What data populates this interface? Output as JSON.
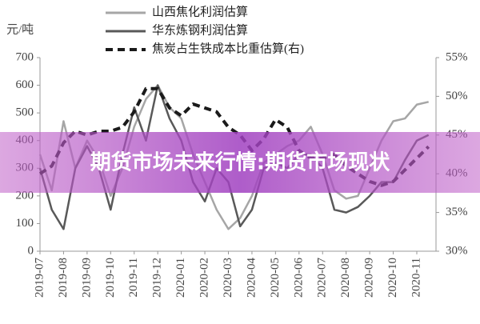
{
  "chart_data": {
    "type": "line",
    "y_label": "元/吨",
    "categories": [
      "2019-07",
      null,
      "2019-08",
      null,
      "2019-09",
      null,
      "2019-10",
      null,
      "2019-11",
      null,
      "2019-12",
      null,
      "2020-01",
      null,
      "2020-02",
      null,
      "2020-03",
      null,
      "2020-04",
      null,
      "2020-05",
      null,
      "2020-06",
      null,
      "2020-07",
      null,
      "2020-08",
      null,
      "2020-09",
      null,
      "2020-10",
      null,
      "2020-11",
      null
    ],
    "series": [
      {
        "name": "山西焦化利润估算",
        "color": "#a6a6a6",
        "style": "solid",
        "axis": "y",
        "values": [
          350,
          220,
          470,
          300,
          400,
          330,
          200,
          300,
          450,
          550,
          600,
          520,
          480,
          350,
          250,
          150,
          80,
          120,
          200,
          320,
          350,
          380,
          400,
          450,
          350,
          220,
          190,
          200,
          300,
          400,
          470,
          480,
          530,
          540
        ]
      },
      {
        "name": "华东炼钢利润估算",
        "color": "#595959",
        "style": "solid",
        "axis": "y",
        "values": [
          300,
          150,
          80,
          300,
          380,
          300,
          150,
          350,
          520,
          400,
          600,
          480,
          400,
          250,
          180,
          300,
          250,
          90,
          150,
          300,
          320,
          300,
          350,
          350,
          300,
          150,
          140,
          160,
          200,
          250,
          250,
          330,
          400,
          420
        ]
      },
      {
        "name": "焦炭占生铁成本比重估算(右)",
        "color": "#1a1a1a",
        "style": "dashed",
        "axis": "y2",
        "values": [
          40,
          41,
          44,
          45.5,
          45,
          45.5,
          45.5,
          46,
          48,
          51,
          51,
          48.5,
          47.5,
          49,
          48.5,
          48,
          46,
          45,
          43,
          44.5,
          47,
          46,
          43,
          42,
          42,
          42.5,
          41,
          40,
          39,
          38.5,
          39,
          40.5,
          42,
          43.5
        ]
      }
    ],
    "ylim": [
      0,
      700
    ],
    "yticks": [
      0,
      100,
      200,
      300,
      400,
      500,
      600,
      700
    ],
    "y2lim": [
      30,
      55
    ],
    "y2ticks": [
      {
        "value": 30,
        "label": "30%"
      },
      {
        "value": 35,
        "label": "35%"
      },
      {
        "value": 40,
        "label": "40%"
      },
      {
        "value": 45,
        "label": "45%"
      },
      {
        "value": 50,
        "label": "50%"
      },
      {
        "value": 55,
        "label": "55%"
      }
    ]
  },
  "overlay": {
    "text": "期货市场未来行情:期货市场现状"
  }
}
